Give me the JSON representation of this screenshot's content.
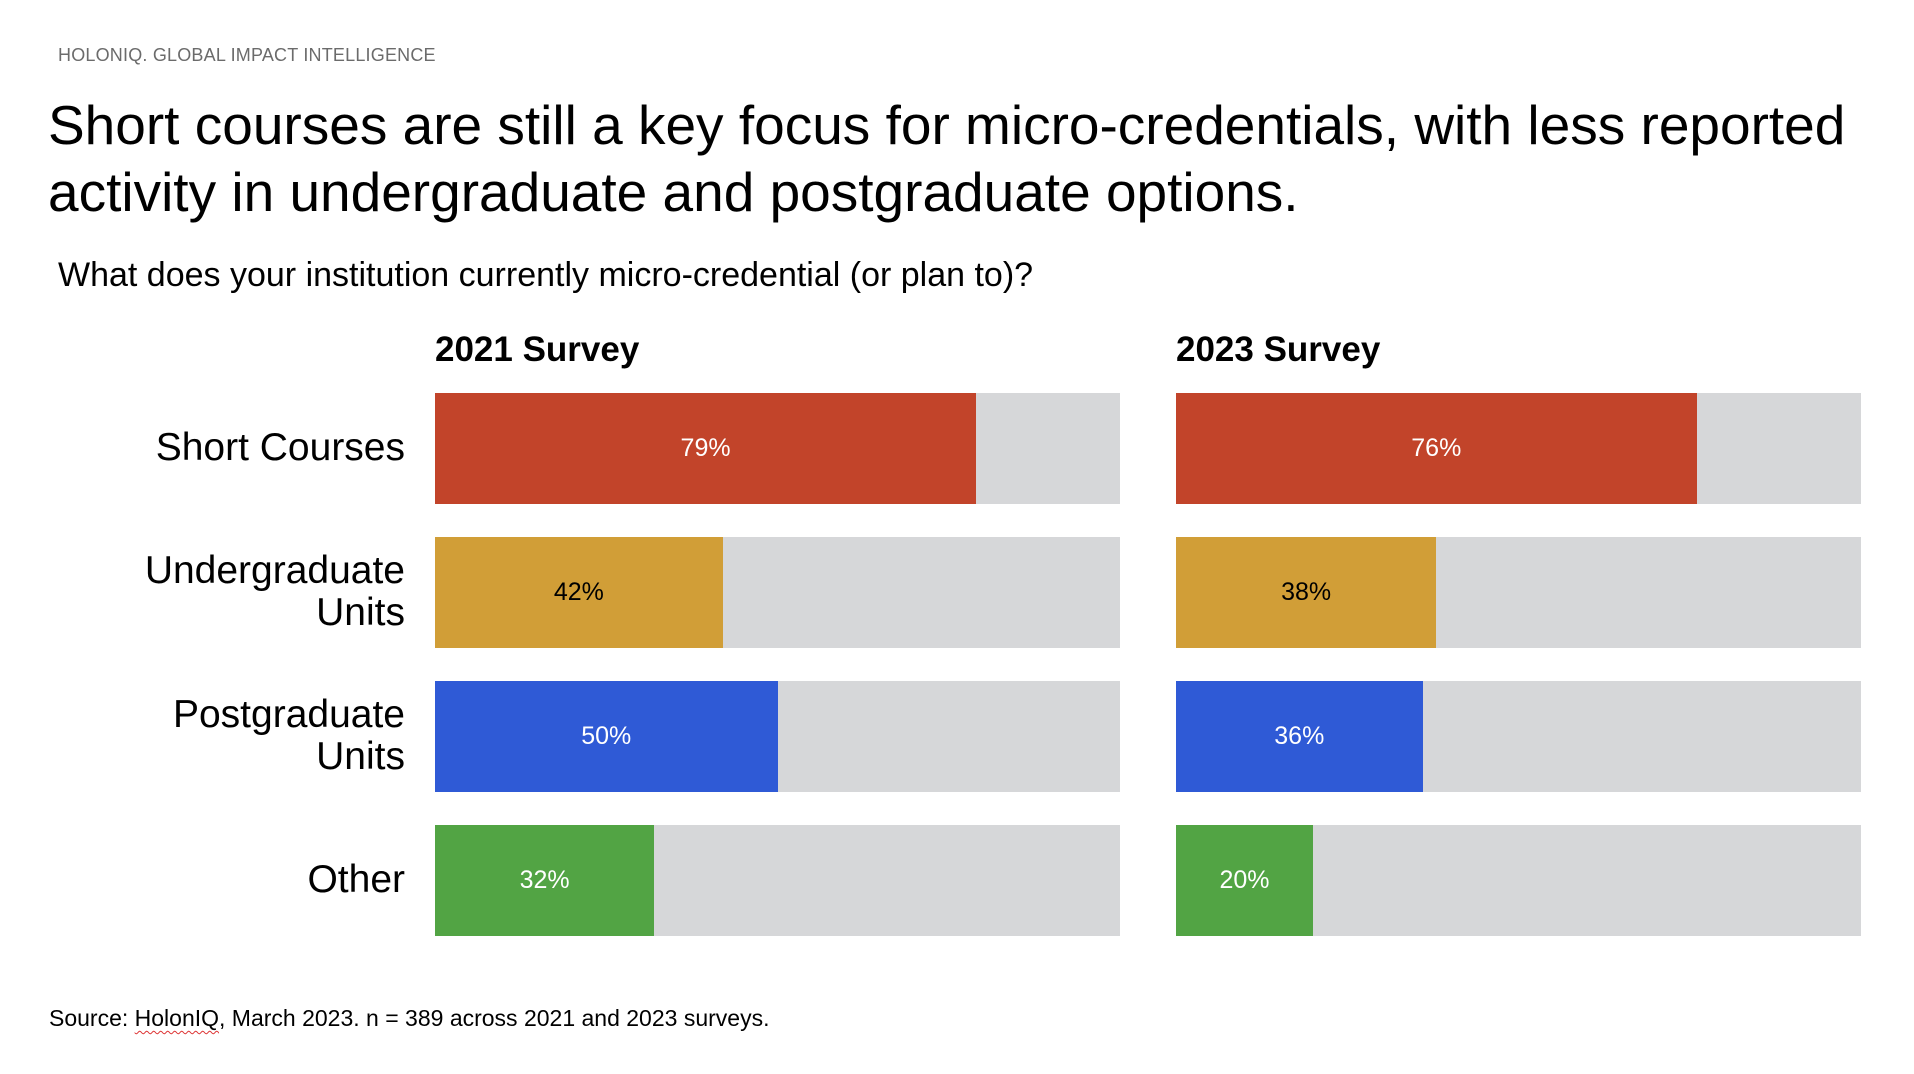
{
  "brand": "HOLONIQ. GLOBAL IMPACT INTELLIGENCE",
  "title": "Short courses are still a key focus for micro-credentials, with less reported activity in undergraduate and postgraduate options.",
  "subtitle": "What does your institution currently micro-credential (or plan to)?",
  "source": {
    "prefix": "Source: ",
    "name": "HolonIQ",
    "rest": ", March 2023. n = 389 across 2021 and 2023 surveys."
  },
  "chart_data": {
    "type": "bar",
    "orientation": "horizontal",
    "categories": [
      "Short Courses",
      "Undergraduate Units",
      "Postgraduate Units",
      "Other"
    ],
    "category_lines": [
      [
        "Short Courses"
      ],
      [
        "Undergraduate",
        "Units"
      ],
      [
        "Postgraduate",
        "Units"
      ],
      [
        "Other"
      ]
    ],
    "xlim": [
      0,
      100
    ],
    "unit": "%",
    "colors": [
      "#C2442A",
      "#D19E37",
      "#2F5AD6",
      "#52A444"
    ],
    "track_color": "#D6D7D9",
    "label_colors": [
      "#ffffff",
      "#000000",
      "#ffffff",
      "#ffffff"
    ],
    "panels": [
      {
        "title": "2021 Survey",
        "values": [
          79,
          42,
          50,
          32
        ],
        "labels": [
          "79%",
          "42%",
          "50%",
          "32%"
        ]
      },
      {
        "title": "2023 Survey",
        "values": [
          76,
          38,
          36,
          20
        ],
        "labels": [
          "76%",
          "38%",
          "36%",
          "20%"
        ]
      }
    ]
  }
}
